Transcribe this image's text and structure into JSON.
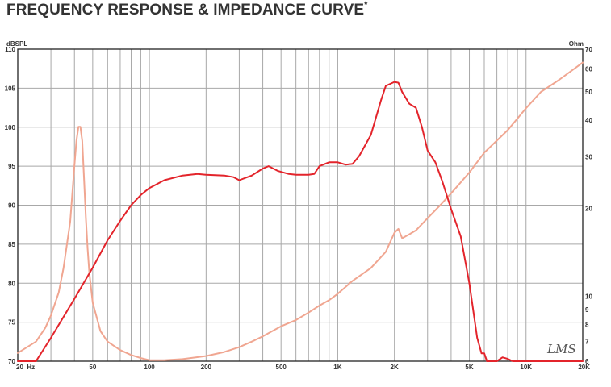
{
  "title": "FREQUENCY RESPONSE & IMPEDANCE CURVE",
  "title_mark": "*",
  "watermark": "LMS",
  "chart_data": {
    "type": "line",
    "x_scale": "log",
    "xlim": [
      20,
      20000
    ],
    "grid": true,
    "xticks": [
      {
        "v": 20,
        "label": "20  Hz"
      },
      {
        "v": 50,
        "label": "50"
      },
      {
        "v": 100,
        "label": "100"
      },
      {
        "v": 200,
        "label": "200"
      },
      {
        "v": 500,
        "label": "500"
      },
      {
        "v": 1000,
        "label": "1K"
      },
      {
        "v": 2000,
        "label": "2K"
      },
      {
        "v": 5000,
        "label": "5K"
      },
      {
        "v": 10000,
        "label": "10K"
      },
      {
        "v": 20000,
        "label": "20K"
      }
    ],
    "left_axis": {
      "unit": "dBSPL",
      "ylim": [
        70,
        110
      ],
      "ticks": [
        70,
        75,
        80,
        85,
        90,
        95,
        100,
        105,
        110
      ]
    },
    "right_axis": {
      "unit": "Ohm",
      "scale": "log",
      "ylim": [
        6,
        70
      ],
      "ticks": [
        6,
        7,
        8,
        9,
        10,
        20,
        30,
        40,
        50,
        60,
        70
      ]
    },
    "series": [
      {
        "axis": "left",
        "color": "#e3242b",
        "x": [
          20,
          25,
          30,
          40,
          50,
          60,
          70,
          80,
          90,
          100,
          120,
          150,
          180,
          200,
          250,
          280,
          300,
          350,
          400,
          430,
          480,
          550,
          600,
          700,
          750,
          800,
          900,
          1000,
          1100,
          1200,
          1300,
          1500,
          1700,
          1800,
          2000,
          2100,
          2200,
          2400,
          2600,
          2800,
          3000,
          3300,
          3600,
          4000,
          4500,
          5000,
          5500,
          5800,
          6000,
          6200,
          6500,
          7000,
          7500,
          8000,
          8500,
          10000,
          15000,
          20000
        ],
        "y": [
          70,
          70,
          73,
          78,
          82,
          85.5,
          88,
          90,
          91.3,
          92.2,
          93.2,
          93.8,
          94,
          93.9,
          93.8,
          93.6,
          93.2,
          93.8,
          94.7,
          95,
          94.4,
          94.0,
          93.9,
          93.9,
          94.0,
          95.0,
          95.5,
          95.5,
          95.2,
          95.3,
          96.3,
          99.0,
          103.5,
          105.3,
          105.8,
          105.7,
          104.5,
          103.0,
          102.5,
          100.0,
          97.0,
          95.5,
          93.0,
          89.5,
          86.0,
          80.0,
          73.0,
          71.0,
          71.0,
          70,
          70,
          70,
          70.5,
          70.3,
          70,
          70,
          70,
          70
        ]
      },
      {
        "axis": "right",
        "color": "#f0a691",
        "x": [
          20,
          25,
          28,
          30,
          33,
          35,
          38,
          40,
          41,
          42,
          43,
          44,
          45,
          46,
          47,
          48,
          50,
          55,
          60,
          70,
          80,
          90,
          100,
          120,
          150,
          200,
          250,
          300,
          350,
          400,
          500,
          600,
          700,
          800,
          900,
          1000,
          1200,
          1500,
          1800,
          2000,
          2100,
          2200,
          2400,
          2600,
          3000,
          3500,
          4000,
          5000,
          6000,
          8000,
          10000,
          12000,
          15000,
          20000
        ],
        "y": [
          6.4,
          7.0,
          7.8,
          8.6,
          10.3,
          12.5,
          18.0,
          28.0,
          34.0,
          38.0,
          38.0,
          34.0,
          25.0,
          18.5,
          14.5,
          12.0,
          9.5,
          7.6,
          7.0,
          6.55,
          6.3,
          6.15,
          6.05,
          6.05,
          6.1,
          6.25,
          6.45,
          6.7,
          7.0,
          7.3,
          7.9,
          8.3,
          8.8,
          9.3,
          9.7,
          10.2,
          11.3,
          12.5,
          14.2,
          16.5,
          17.0,
          15.8,
          16.3,
          16.8,
          18.5,
          20.5,
          22.5,
          26.5,
          31.0,
          37.0,
          44.0,
          50.0,
          55.0,
          63.0
        ]
      }
    ]
  }
}
